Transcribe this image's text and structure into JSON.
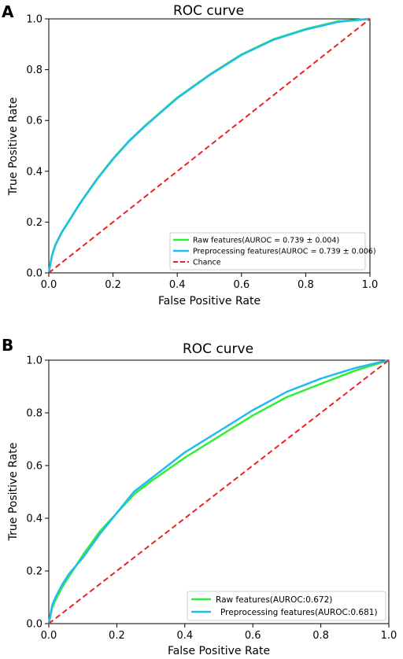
{
  "chart_data": [
    {
      "panel": "A",
      "type": "line",
      "title": "ROC curve",
      "xlabel": "False Positive Rate",
      "ylabel": "True Positive Rate",
      "xlim": [
        0,
        1
      ],
      "ylim": [
        0,
        1
      ],
      "xticks": [
        "0.0",
        "0.2",
        "0.4",
        "0.6",
        "0.8",
        "1.0"
      ],
      "yticks": [
        "0.0",
        "0.2",
        "0.4",
        "0.6",
        "0.8",
        "1.0"
      ],
      "grid": false,
      "legend_position": "lower-right",
      "series": [
        {
          "name": "Raw features(AUROC = 0.739 ± 0.004)",
          "color": "#33ee33",
          "x": [
            0,
            0.01,
            0.02,
            0.04,
            0.06,
            0.08,
            0.1,
            0.15,
            0.2,
            0.25,
            0.3,
            0.4,
            0.5,
            0.6,
            0.7,
            0.8,
            0.9,
            1.0
          ],
          "y": [
            0,
            0.07,
            0.11,
            0.16,
            0.2,
            0.24,
            0.28,
            0.37,
            0.45,
            0.52,
            0.58,
            0.69,
            0.78,
            0.86,
            0.92,
            0.96,
            0.99,
            1.0
          ]
        },
        {
          "name": "Preprocessing features(AUROC = 0.739 ± 0.006)",
          "color": "#22bbee",
          "x": [
            0,
            0.01,
            0.02,
            0.04,
            0.06,
            0.08,
            0.1,
            0.15,
            0.2,
            0.25,
            0.3,
            0.4,
            0.5,
            0.6,
            0.7,
            0.8,
            0.9,
            1.0
          ],
          "y": [
            0,
            0.068,
            0.108,
            0.158,
            0.198,
            0.238,
            0.278,
            0.368,
            0.448,
            0.518,
            0.578,
            0.688,
            0.778,
            0.858,
            0.918,
            0.958,
            0.988,
            1.0
          ]
        },
        {
          "name": "Chance",
          "color": "#ee2222",
          "dashed": true,
          "x": [
            0,
            1
          ],
          "y": [
            0,
            1
          ]
        }
      ]
    },
    {
      "panel": "B",
      "type": "line",
      "title": "ROC curve",
      "xlabel": "False Positive Rate",
      "ylabel": "True Positive Rate",
      "xlim": [
        0,
        1
      ],
      "ylim": [
        0,
        1
      ],
      "xticks": [
        "0.0",
        "0.2",
        "0.4",
        "0.6",
        "0.8",
        "1.0"
      ],
      "yticks": [
        "0.0",
        "0.2",
        "0.4",
        "0.6",
        "0.8",
        "1.0"
      ],
      "grid": false,
      "legend_position": "lower-right",
      "series": [
        {
          "name": "Raw features(AUROC:0.672)",
          "color": "#33ee33",
          "x": [
            0,
            0.01,
            0.02,
            0.04,
            0.06,
            0.08,
            0.1,
            0.15,
            0.2,
            0.25,
            0.3,
            0.4,
            0.5,
            0.6,
            0.7,
            0.8,
            0.9,
            1.0
          ],
          "y": [
            0,
            0.06,
            0.09,
            0.14,
            0.18,
            0.22,
            0.26,
            0.35,
            0.42,
            0.49,
            0.54,
            0.63,
            0.71,
            0.79,
            0.86,
            0.91,
            0.96,
            1.0
          ]
        },
        {
          "name": "Preprocessing features(AUROC:0.681)",
          "color": "#22bbee",
          "x": [
            0,
            0.01,
            0.02,
            0.04,
            0.06,
            0.08,
            0.1,
            0.15,
            0.2,
            0.25,
            0.3,
            0.4,
            0.5,
            0.6,
            0.7,
            0.8,
            0.9,
            1.0
          ],
          "y": [
            0,
            0.07,
            0.1,
            0.15,
            0.19,
            0.22,
            0.25,
            0.34,
            0.42,
            0.5,
            0.55,
            0.65,
            0.73,
            0.81,
            0.88,
            0.93,
            0.97,
            1.0
          ]
        },
        {
          "name": "",
          "color": "#ee2222",
          "dashed": true,
          "x": [
            0,
            1
          ],
          "y": [
            0,
            1
          ]
        }
      ]
    }
  ]
}
